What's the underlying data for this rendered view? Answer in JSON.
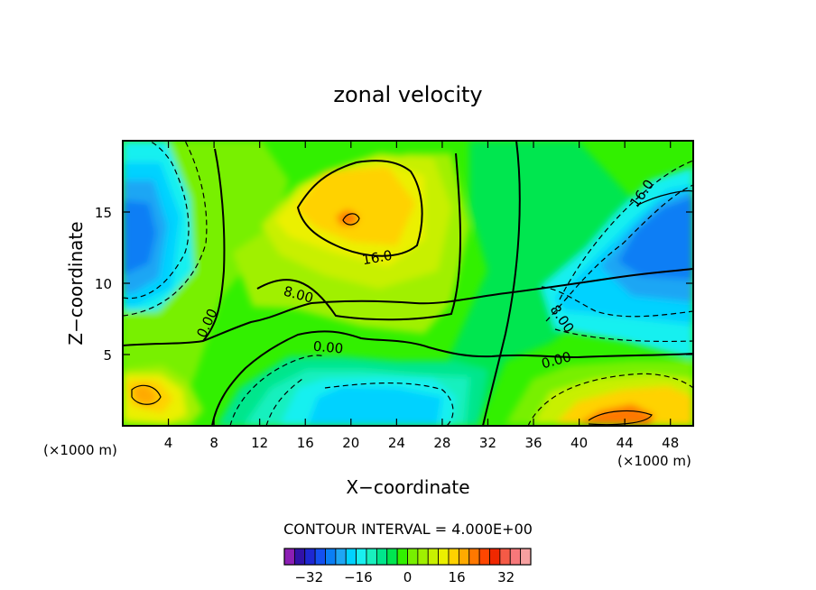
{
  "chart_data": {
    "type": "heatmap",
    "title": "zonal velocity",
    "xlabel": "X−coordinate",
    "ylabel": "Z−coordinate",
    "x_scale_note_left": "(×1000 m)",
    "x_scale_note_right": "(×1000 m)",
    "xlim": [
      0,
      50
    ],
    "ylim": [
      0,
      20
    ],
    "xticks": [
      4,
      8,
      12,
      16,
      20,
      24,
      28,
      32,
      36,
      40,
      44,
      48
    ],
    "xtick_labels": [
      "4",
      "8",
      "12",
      "16",
      "20",
      "24",
      "28",
      "32",
      "36",
      "40",
      "44",
      "48"
    ],
    "yticks": [
      5,
      10,
      15
    ],
    "ytick_labels": [
      "5",
      "10",
      "15"
    ],
    "contour_interval_text": "CONTOUR INTERVAL = 4.000E+00",
    "contour_labels": [
      {
        "text": "16.0",
        "x": 22.3,
        "y": 11.8,
        "angle": -10
      },
      {
        "text": "8.00",
        "x": 15.4,
        "y": 9.2,
        "angle": 15
      },
      {
        "text": "0.00",
        "x": 7.4,
        "y": 7.2,
        "angle": -65
      },
      {
        "text": "0.00",
        "x": 18.0,
        "y": 5.5,
        "angle": 5
      },
      {
        "text": "16.0",
        "x": 45.5,
        "y": 16.3,
        "angle": -55
      },
      {
        "text": "8.00",
        "x": 38.5,
        "y": 7.5,
        "angle": 55
      },
      {
        "text": "0.00",
        "x": 38.0,
        "y": 4.6,
        "angle": -15
      }
    ],
    "features": [
      {
        "x": 2,
        "y": 13,
        "value": -20
      },
      {
        "x": 48,
        "y": 12.5,
        "value": -22
      },
      {
        "x": 20,
        "y": 14.5,
        "value": 22
      },
      {
        "x": 1.8,
        "y": 2.3,
        "value": 16
      },
      {
        "x": 44,
        "y": 0.6,
        "value": 22
      },
      {
        "x": 23,
        "y": 2.2,
        "value": -10
      },
      {
        "x": 16.5,
        "y": 1.4,
        "value": -6
      }
    ],
    "colorbar": {
      "min": -40,
      "max": 40,
      "step": 4,
      "tick_values": [
        -32,
        -16,
        0,
        16,
        32
      ],
      "tick_labels": [
        "−32",
        "−16",
        "0",
        "16",
        "32"
      ],
      "colors": [
        "#8c1fb4",
        "#3212a8",
        "#1e28d2",
        "#1450f0",
        "#0a7ef5",
        "#1ea6f4",
        "#00d2ff",
        "#19f0f0",
        "#19f0be",
        "#00e68c",
        "#00e650",
        "#32f000",
        "#78f000",
        "#a0f000",
        "#c8f000",
        "#ebf000",
        "#ffd200",
        "#ffaa00",
        "#ff7800",
        "#ff4600",
        "#f02800",
        "#f55a46",
        "#f7787a",
        "#f7a0a0"
      ]
    }
  }
}
